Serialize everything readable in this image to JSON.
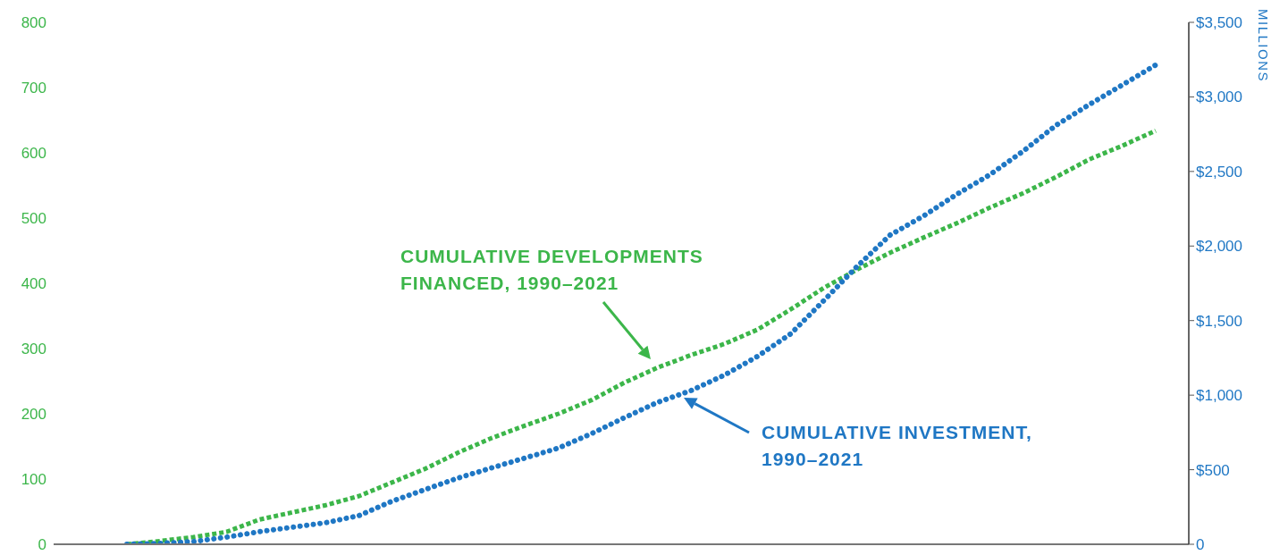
{
  "chart_data": {
    "type": "line",
    "categories": [
      null,
      null,
      null,
      null,
      null,
      null,
      null,
      null,
      null,
      null,
      null,
      null,
      null,
      null,
      null,
      null,
      null,
      null,
      null,
      null,
      null,
      null,
      null,
      null,
      null,
      null,
      null,
      null,
      null,
      null,
      null,
      null
    ],
    "series": [
      {
        "name": "CUMULATIVE DEVELOPMENTS FINANCED, 1990–2021",
        "color": "#3cb64a",
        "line_style": "dashed",
        "values": [
          0,
          5,
          11,
          19,
          38,
          49,
          60,
          74,
          95,
          116,
          141,
          163,
          182,
          200,
          221,
          248,
          271,
          290,
          307,
          329,
          360,
          393,
          421,
          447,
          470,
          492,
          516,
          538,
          563,
          590,
          611,
          634
        ]
      },
      {
        "name": "CUMULATIVE INVESTMENT, 1990–2021",
        "color": "#1f77c4",
        "line_style": "dotted",
        "axis": "y2",
        "values": [
          0,
          6,
          18,
          48,
          85,
          115,
          145,
          193,
          290,
          368,
          446,
          513,
          579,
          645,
          742,
          850,
          953,
          1031,
          1134,
          1260,
          1411,
          1634,
          1863,
          2074,
          2201,
          2346,
          2478,
          2635,
          2810,
          2949,
          3081,
          3214
        ]
      }
    ],
    "ylim": [
      0,
      800
    ],
    "yticks": [
      0,
      100,
      200,
      300,
      400,
      500,
      600,
      700,
      800
    ],
    "y2lim": [
      0,
      3500
    ],
    "y2ticks": [
      0,
      {
        "value": 500,
        "label": "$500"
      },
      {
        "value": 1000,
        "label": "$1,000"
      },
      {
        "value": 1500,
        "label": "$1,500"
      },
      {
        "value": 2000,
        "label": "$2,000"
      },
      {
        "value": 2500,
        "label": "$2,500"
      },
      {
        "value": 3000,
        "label": "$3,000"
      },
      {
        "value": 3500,
        "label": "$3,500"
      }
    ],
    "y2label": "MILLIONS",
    "tick_labels": "y",
    "marker": "none",
    "grid": false
  }
}
